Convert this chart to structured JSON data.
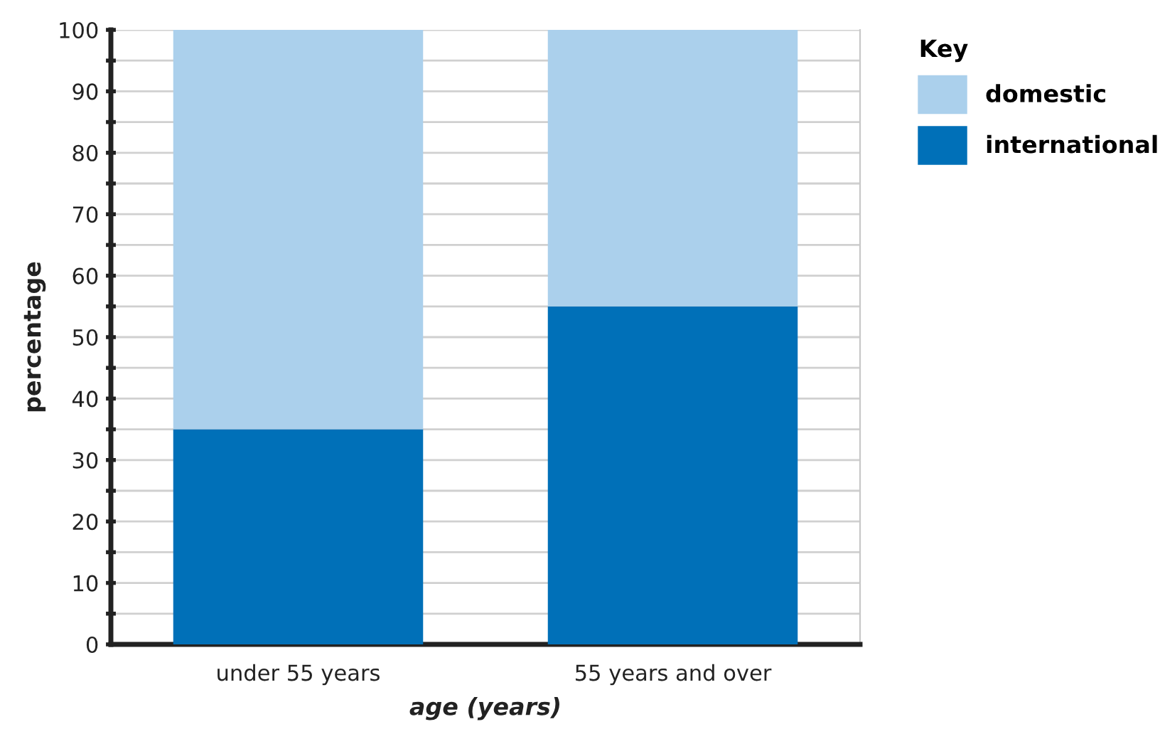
{
  "chart_data": {
    "type": "bar",
    "stacked": true,
    "categories": [
      "under 55 years",
      "55 years and over"
    ],
    "series": [
      {
        "name": "international",
        "color": "#0070b8",
        "values": [
          35,
          55
        ]
      },
      {
        "name": "domestic",
        "color": "#abd0ec",
        "values": [
          65,
          45
        ]
      }
    ],
    "xlabel": "age (years)",
    "ylabel": "percentage",
    "legend_title": "Key",
    "ylim": [
      0,
      100
    ],
    "yticks": [
      0,
      {
        "value": 5,
        "label": null
      },
      10,
      {
        "value": 15,
        "label": null
      },
      20,
      {
        "value": 25,
        "label": null
      },
      30,
      {
        "value": 35,
        "label": null
      },
      40,
      {
        "value": 45,
        "label": null
      },
      50,
      {
        "value": 55,
        "label": null
      },
      60,
      {
        "value": 65,
        "label": null
      },
      70,
      {
        "value": 75,
        "label": null
      },
      80,
      {
        "value": 85,
        "label": null
      },
      90,
      {
        "value": 95,
        "label": null
      },
      100
    ],
    "grid": "y",
    "legend": "top right"
  }
}
